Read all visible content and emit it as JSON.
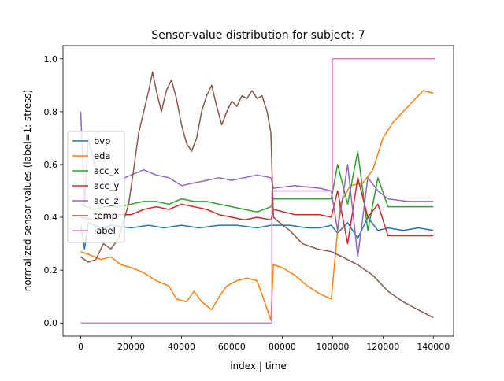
{
  "chart_data": {
    "type": "line",
    "title": "Sensor-value distribution for subject: 7",
    "xlabel": "index | time",
    "ylabel": "normalized sensor values (label=1: stress)",
    "xlim": [
      -7050,
      148050
    ],
    "ylim": [
      -0.05,
      1.05
    ],
    "x_ticks": [
      0,
      20000,
      40000,
      60000,
      80000,
      100000,
      120000,
      140000
    ],
    "x_tick_labels": [
      "0",
      "20000",
      "40000",
      "60000",
      "80000",
      "100000",
      "120000",
      "140000"
    ],
    "y_ticks": [
      0.0,
      0.2,
      0.4,
      0.6,
      0.8,
      1.0
    ],
    "y_tick_labels": [
      "0.0",
      "0.2",
      "0.4",
      "0.6",
      "0.8",
      "1.0"
    ],
    "grid": false,
    "legend_position": "left",
    "series": [
      {
        "name": "bvp",
        "color": "#1f77b4",
        "points": [
          [
            0,
            0.37
          ],
          [
            1500,
            0.28
          ],
          [
            3000,
            0.38
          ],
          [
            8000,
            0.36
          ],
          [
            12000,
            0.37
          ],
          [
            20000,
            0.36
          ],
          [
            27000,
            0.37
          ],
          [
            33000,
            0.36
          ],
          [
            40000,
            0.37
          ],
          [
            47000,
            0.36
          ],
          [
            55000,
            0.37
          ],
          [
            62000,
            0.37
          ],
          [
            70000,
            0.36
          ],
          [
            75500,
            0.37
          ],
          [
            76500,
            0.37
          ],
          [
            83000,
            0.37
          ],
          [
            90000,
            0.36
          ],
          [
            95000,
            0.36
          ],
          [
            99500,
            0.37
          ],
          [
            102000,
            0.34
          ],
          [
            106000,
            0.38
          ],
          [
            110000,
            0.32
          ],
          [
            114000,
            0.4
          ],
          [
            118000,
            0.35
          ],
          [
            122000,
            0.36
          ],
          [
            128000,
            0.35
          ],
          [
            134000,
            0.36
          ],
          [
            140000,
            0.35
          ]
        ]
      },
      {
        "name": "eda",
        "color": "#ff7f0e",
        "points": [
          [
            0,
            0.27
          ],
          [
            3000,
            0.26
          ],
          [
            8000,
            0.24
          ],
          [
            12000,
            0.25
          ],
          [
            16000,
            0.22
          ],
          [
            20000,
            0.21
          ],
          [
            25000,
            0.19
          ],
          [
            30000,
            0.16
          ],
          [
            35000,
            0.14
          ],
          [
            38000,
            0.09
          ],
          [
            42000,
            0.08
          ],
          [
            45000,
            0.12
          ],
          [
            48000,
            0.08
          ],
          [
            52000,
            0.05
          ],
          [
            55000,
            0.1
          ],
          [
            58000,
            0.14
          ],
          [
            62000,
            0.16
          ],
          [
            66000,
            0.17
          ],
          [
            70000,
            0.16
          ],
          [
            73000,
            0.08
          ],
          [
            75500,
            0.01
          ],
          [
            76500,
            0.22
          ],
          [
            80000,
            0.21
          ],
          [
            85000,
            0.18
          ],
          [
            90000,
            0.14
          ],
          [
            95000,
            0.11
          ],
          [
            99500,
            0.09
          ],
          [
            103000,
            0.45
          ],
          [
            107000,
            0.52
          ],
          [
            112000,
            0.53
          ],
          [
            116000,
            0.58
          ],
          [
            120000,
            0.7
          ],
          [
            124000,
            0.76
          ],
          [
            128000,
            0.8
          ],
          [
            132000,
            0.84
          ],
          [
            136000,
            0.88
          ],
          [
            140000,
            0.87
          ]
        ]
      },
      {
        "name": "acc_x",
        "color": "#2ca02c",
        "points": [
          [
            0,
            0.45
          ],
          [
            5000,
            0.43
          ],
          [
            10000,
            0.44
          ],
          [
            15000,
            0.44
          ],
          [
            20000,
            0.45
          ],
          [
            25000,
            0.46
          ],
          [
            30000,
            0.46
          ],
          [
            35000,
            0.45
          ],
          [
            40000,
            0.47
          ],
          [
            45000,
            0.46
          ],
          [
            50000,
            0.46
          ],
          [
            55000,
            0.45
          ],
          [
            60000,
            0.44
          ],
          [
            65000,
            0.43
          ],
          [
            70000,
            0.42
          ],
          [
            75500,
            0.44
          ],
          [
            76500,
            0.47
          ],
          [
            85000,
            0.47
          ],
          [
            95000,
            0.47
          ],
          [
            99500,
            0.47
          ],
          [
            102000,
            0.6
          ],
          [
            106000,
            0.45
          ],
          [
            110000,
            0.65
          ],
          [
            114000,
            0.35
          ],
          [
            118000,
            0.55
          ],
          [
            122000,
            0.44
          ],
          [
            130000,
            0.44
          ],
          [
            140000,
            0.44
          ]
        ]
      },
      {
        "name": "acc_y",
        "color": "#d62728",
        "points": [
          [
            0,
            0.4
          ],
          [
            5000,
            0.39
          ],
          [
            10000,
            0.4
          ],
          [
            15000,
            0.41
          ],
          [
            20000,
            0.41
          ],
          [
            25000,
            0.43
          ],
          [
            30000,
            0.44
          ],
          [
            35000,
            0.43
          ],
          [
            40000,
            0.45
          ],
          [
            45000,
            0.44
          ],
          [
            50000,
            0.43
          ],
          [
            55000,
            0.41
          ],
          [
            60000,
            0.4
          ],
          [
            65000,
            0.39
          ],
          [
            70000,
            0.4
          ],
          [
            75500,
            0.39
          ],
          [
            76500,
            0.43
          ],
          [
            85000,
            0.41
          ],
          [
            95000,
            0.41
          ],
          [
            99500,
            0.4
          ],
          [
            102000,
            0.5
          ],
          [
            106000,
            0.3
          ],
          [
            110000,
            0.55
          ],
          [
            114000,
            0.4
          ],
          [
            118000,
            0.45
          ],
          [
            122000,
            0.33
          ],
          [
            130000,
            0.33
          ],
          [
            140000,
            0.33
          ]
        ]
      },
      {
        "name": "acc_z",
        "color": "#9467bd",
        "points": [
          [
            0,
            0.8
          ],
          [
            1500,
            0.45
          ],
          [
            3000,
            0.7
          ],
          [
            6000,
            0.58
          ],
          [
            10000,
            0.52
          ],
          [
            15000,
            0.54
          ],
          [
            20000,
            0.56
          ],
          [
            25000,
            0.58
          ],
          [
            30000,
            0.56
          ],
          [
            35000,
            0.55
          ],
          [
            40000,
            0.52
          ],
          [
            45000,
            0.53
          ],
          [
            50000,
            0.54
          ],
          [
            55000,
            0.55
          ],
          [
            60000,
            0.54
          ],
          [
            65000,
            0.55
          ],
          [
            70000,
            0.56
          ],
          [
            75500,
            0.55
          ],
          [
            76500,
            0.51
          ],
          [
            85000,
            0.52
          ],
          [
            95000,
            0.51
          ],
          [
            99500,
            0.5
          ],
          [
            102000,
            0.35
          ],
          [
            106000,
            0.6
          ],
          [
            110000,
            0.25
          ],
          [
            114000,
            0.55
          ],
          [
            118000,
            0.5
          ],
          [
            122000,
            0.47
          ],
          [
            130000,
            0.46
          ],
          [
            140000,
            0.46
          ]
        ]
      },
      {
        "name": "temp",
        "color": "#8c564b",
        "points": [
          [
            0,
            0.25
          ],
          [
            3000,
            0.23
          ],
          [
            6000,
            0.24
          ],
          [
            9000,
            0.3
          ],
          [
            12000,
            0.28
          ],
          [
            15000,
            0.32
          ],
          [
            19000,
            0.45
          ],
          [
            21000,
            0.58
          ],
          [
            23000,
            0.72
          ],
          [
            25000,
            0.8
          ],
          [
            27000,
            0.88
          ],
          [
            28500,
            0.95
          ],
          [
            30000,
            0.88
          ],
          [
            32000,
            0.8
          ],
          [
            34000,
            0.88
          ],
          [
            36000,
            0.92
          ],
          [
            38000,
            0.85
          ],
          [
            40000,
            0.75
          ],
          [
            42000,
            0.68
          ],
          [
            44000,
            0.65
          ],
          [
            46000,
            0.7
          ],
          [
            48000,
            0.8
          ],
          [
            50000,
            0.86
          ],
          [
            52000,
            0.9
          ],
          [
            54000,
            0.82
          ],
          [
            56000,
            0.75
          ],
          [
            58000,
            0.8
          ],
          [
            60000,
            0.84
          ],
          [
            62000,
            0.82
          ],
          [
            64000,
            0.86
          ],
          [
            66000,
            0.85
          ],
          [
            68000,
            0.88
          ],
          [
            70000,
            0.85
          ],
          [
            72000,
            0.86
          ],
          [
            74000,
            0.8
          ],
          [
            75500,
            0.72
          ],
          [
            76500,
            0.4
          ],
          [
            79000,
            0.38
          ],
          [
            83000,
            0.35
          ],
          [
            88000,
            0.3
          ],
          [
            94000,
            0.28
          ],
          [
            99500,
            0.27
          ],
          [
            104000,
            0.25
          ],
          [
            110000,
            0.22
          ],
          [
            116000,
            0.18
          ],
          [
            122000,
            0.12
          ],
          [
            128000,
            0.08
          ],
          [
            134000,
            0.05
          ],
          [
            138000,
            0.03
          ],
          [
            140000,
            0.02
          ]
        ]
      },
      {
        "name": "label",
        "color": "#e377c2",
        "points": [
          [
            0,
            0.0
          ],
          [
            75900,
            0.0
          ],
          [
            75900,
            0.5
          ],
          [
            99900,
            0.5
          ],
          [
            99900,
            1.0
          ],
          [
            140500,
            1.0
          ]
        ]
      }
    ]
  }
}
